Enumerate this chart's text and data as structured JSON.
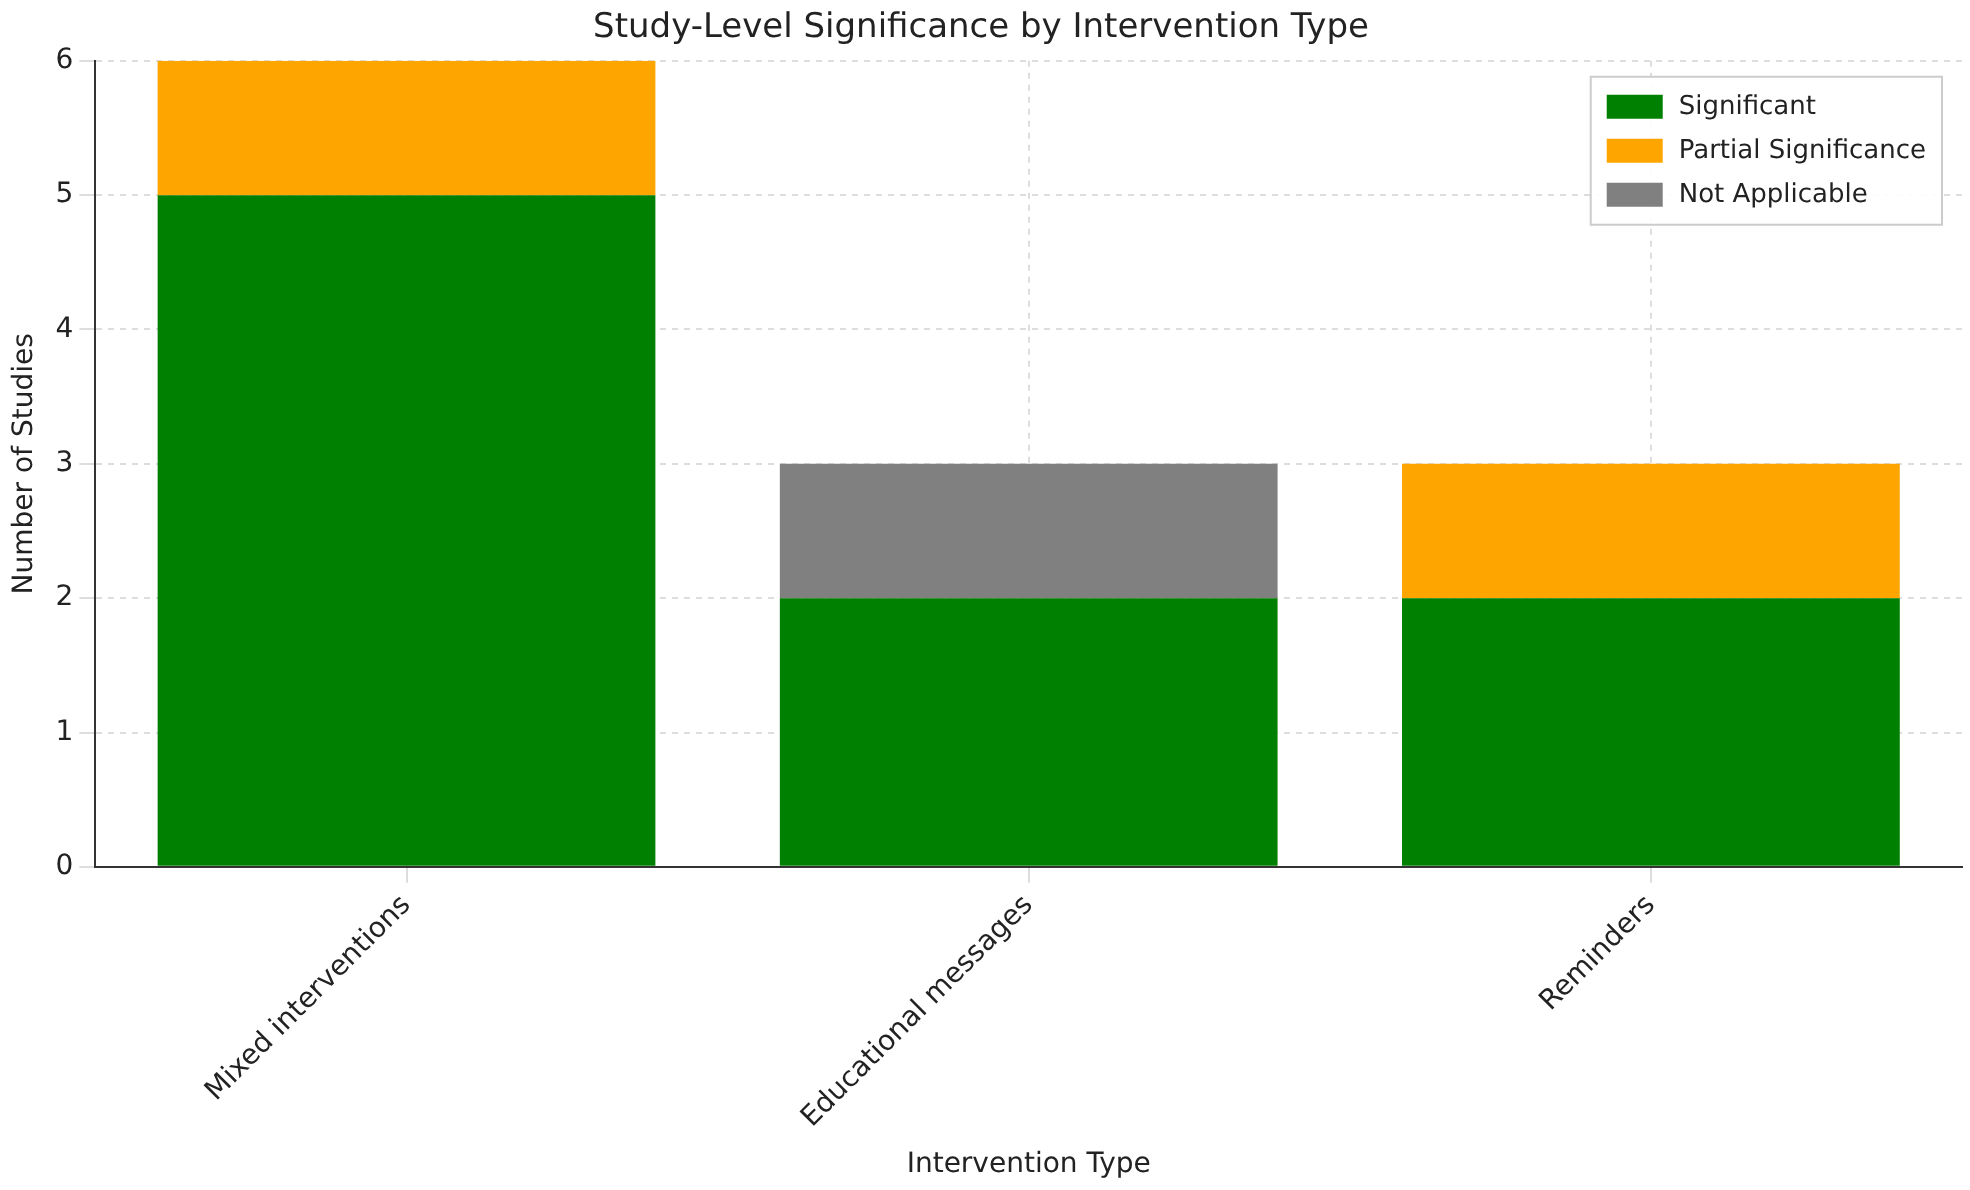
{
  "chart_data": {
    "type": "bar",
    "title": "Study-Level Significance by Intervention Type",
    "xlabel": "Intervention Type",
    "ylabel": "Number of Studies",
    "categories": [
      "Mixed interventions",
      "Educational messages",
      "Reminders"
    ],
    "series": [
      {
        "name": "Significant",
        "color": "#008000",
        "values": [
          5,
          2,
          2
        ]
      },
      {
        "name": "Partial Significance",
        "color": "#ffa500",
        "values": [
          1,
          0,
          1
        ]
      },
      {
        "name": "Not Applicable",
        "color": "#808080",
        "values": [
          0,
          1,
          0
        ]
      }
    ],
    "stacked": true,
    "ylim": [
      0,
      6
    ],
    "yticks": [
      0,
      1,
      2,
      3,
      4,
      5,
      6
    ],
    "grid": true,
    "legend": "top right"
  }
}
